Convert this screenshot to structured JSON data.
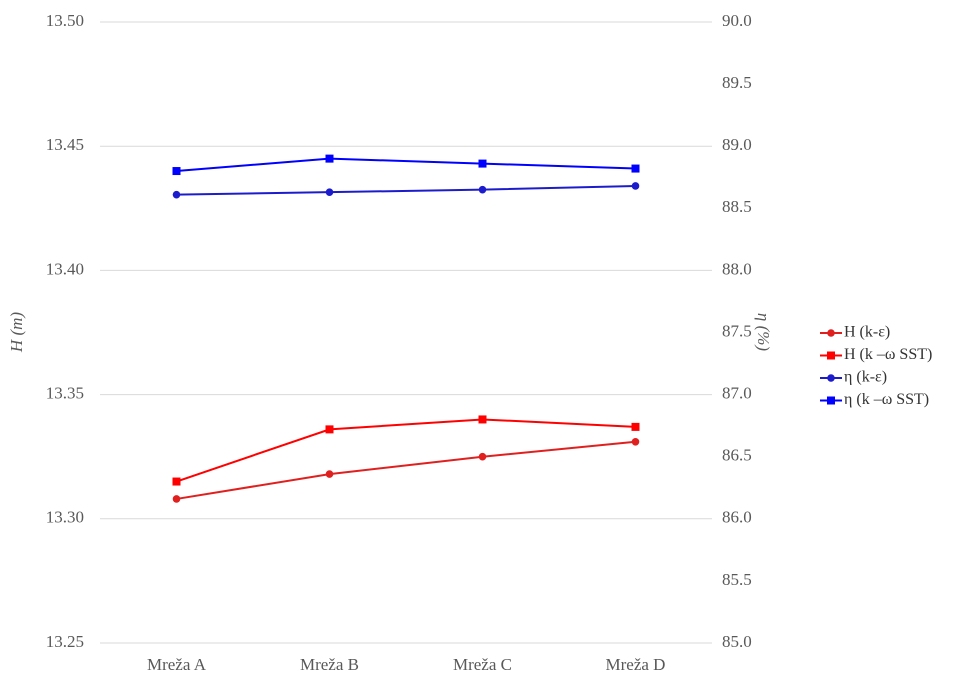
{
  "chart_data": {
    "type": "line",
    "categories": [
      "Mreža A",
      "Mreža B",
      "Mreža C",
      "Mreža D"
    ],
    "ylabel": "H (m)",
    "y2label": "η (%)",
    "ylim": [
      13.25,
      13.5
    ],
    "yticks": [
      13.25,
      {
        "value": 13.3,
        "label": "13.30"
      },
      13.35,
      {
        "value": 13.4,
        "label": "13.40"
      },
      13.45,
      {
        "value": 13.5,
        "label": "13.50"
      }
    ],
    "y2lim": [
      85,
      90
    ],
    "y2ticks": [
      {
        "value": 85,
        "label": "85.0"
      },
      85.5,
      {
        "value": 86,
        "label": "86.0"
      },
      86.5,
      {
        "value": 87,
        "label": "87.0"
      },
      87.5,
      {
        "value": 88,
        "label": "88.0"
      },
      88.5,
      {
        "value": 89,
        "label": "89.0"
      },
      89.5,
      {
        "value": 90,
        "label": "90.0"
      }
    ],
    "grid": true,
    "legend": "right",
    "series": [
      {
        "name": "H (k-ε)",
        "color": "#e0201f",
        "marker": "circle",
        "values": [
          13.308,
          13.318,
          13.325,
          13.331
        ]
      },
      {
        "name": "H (k –ω SST)",
        "color": "#ff0000",
        "marker": "square",
        "values": [
          13.315,
          13.336,
          13.34,
          13.337
        ]
      },
      {
        "name": "η (k-ε)",
        "color": "#1c1ccc",
        "marker": "circle",
        "axis": "y2",
        "values": [
          88.61,
          88.63,
          88.65,
          88.68
        ]
      },
      {
        "name": "η (k –ω SST)",
        "color": "#0000ff",
        "marker": "square",
        "axis": "y2",
        "values": [
          88.8,
          88.9,
          88.86,
          88.82
        ]
      }
    ]
  }
}
